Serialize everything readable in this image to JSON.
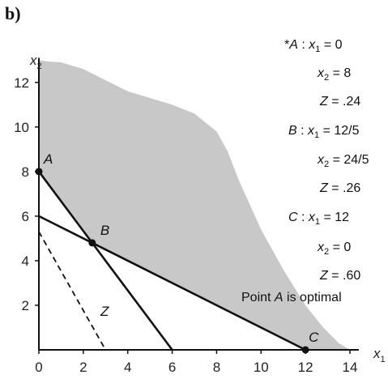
{
  "panel_label": "b)",
  "chart_data": {
    "type": "line",
    "title": "",
    "xlabel": "x1",
    "ylabel": "x2",
    "xlim": [
      0,
      14
    ],
    "ylim": [
      0,
      13
    ],
    "x_ticks": [
      0,
      2,
      4,
      6,
      8,
      10,
      12,
      14
    ],
    "y_ticks": [
      2,
      4,
      6,
      8,
      10,
      12
    ],
    "grid": false,
    "feasible_region_color": "#c8c8c8",
    "feasible_region_boundary": [
      [
        0,
        13
      ],
      [
        0.3,
        12.95
      ],
      [
        1,
        12.9
      ],
      [
        2,
        12.6
      ],
      [
        3,
        12.1
      ],
      [
        4,
        11.6
      ],
      [
        5,
        11.3
      ],
      [
        6,
        11.0
      ],
      [
        7,
        10.6
      ],
      [
        8,
        9.8
      ],
      [
        8.5,
        8.9
      ],
      [
        9,
        7.6
      ],
      [
        10,
        5.4
      ],
      [
        11,
        3.6
      ],
      [
        12,
        2.0
      ],
      [
        12.8,
        1.0
      ],
      [
        13.5,
        0.3
      ],
      [
        14,
        0
      ]
    ],
    "series": [
      {
        "x": [
          0,
          6
        ],
        "y": [
          8,
          0
        ],
        "style": "solid"
      },
      {
        "x": [
          0,
          12
        ],
        "y": [
          6,
          0
        ],
        "style": "solid"
      },
      {
        "name": "Z",
        "x": [
          0,
          3
        ],
        "y": [
          5.3,
          0
        ],
        "style": "dashed"
      }
    ],
    "points": [
      {
        "label": "A",
        "x": 0,
        "y": 8
      },
      {
        "label": "B",
        "x": 2.4,
        "y": 4.8
      },
      {
        "label": "C",
        "x": 12,
        "y": 0
      }
    ],
    "annotations": [
      {
        "line1": "*A : x1 = 0",
        "line2": "x2 = 8",
        "line3": "Z = .24"
      },
      {
        "line1": "B : x1 = 12/5",
        "line2": "x2 = 24/5",
        "line3": "Z = .26"
      },
      {
        "line1": "C : x1 = 12",
        "line2": "x2 = 0",
        "line3": "Z = .60"
      }
    ],
    "optimal_note": "Point A is optimal"
  },
  "text": {
    "annot_a_prefix": "*",
    "annot_a_point": "A",
    "annot_b_point": "B",
    "annot_c_point": "C",
    "x_var": "x",
    "x_sub": "1",
    "eq_x1_a": " = 0",
    "eq_x1_b": " = 12/5",
    "eq_x1_c": " = 12",
    "eq_x2_a": " = 8",
    "eq_x2_b": " = 24/5",
    "eq_x2_c": " = 0",
    "z_var": "Z",
    "eq_z_a": " = .24",
    "eq_z_b": " = .26",
    "eq_z_c": " = .60",
    "x2_sub": "2",
    "colon": " : ",
    "optimal_prefix": "Point ",
    "optimal_point": "A",
    "optimal_suffix": " is optimal",
    "axis_x_var": "x",
    "axis_x_sub": "1",
    "axis_y_var": "x",
    "axis_y_sub": "2",
    "z_line_label": "Z"
  }
}
